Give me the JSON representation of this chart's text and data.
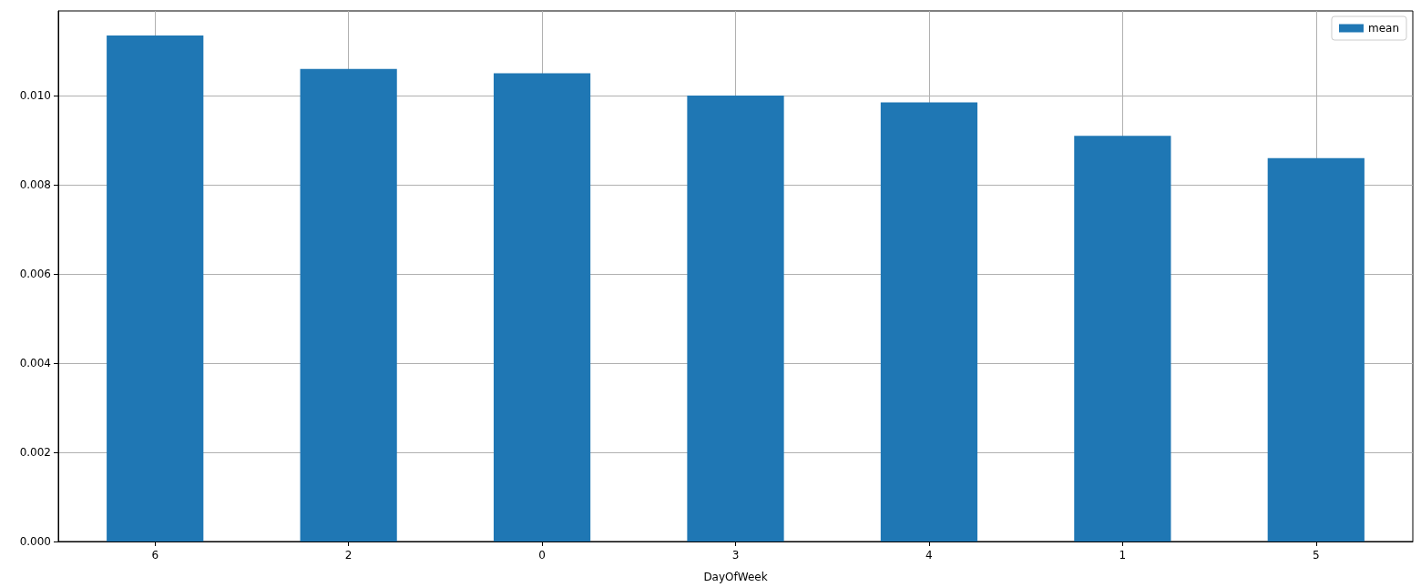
{
  "chart_data": {
    "type": "bar",
    "xlabel": "DayOfWeek",
    "categories": [
      "6",
      "2",
      "0",
      "3",
      "4",
      "1",
      "5"
    ],
    "series": [
      {
        "name": "mean",
        "color": "#1f77b4",
        "values": [
          0.01135,
          0.0106,
          0.0105,
          0.01,
          0.00985,
          0.0091,
          0.0086
        ]
      }
    ],
    "ylim": [
      0,
      0.0119
    ],
    "yticks": [
      {
        "value": 0,
        "label": "0.000"
      },
      0.002,
      0.004,
      0.006,
      0.008,
      {
        "value": 0.01,
        "label": "0.010"
      }
    ],
    "grid": true,
    "legend": "top right"
  }
}
